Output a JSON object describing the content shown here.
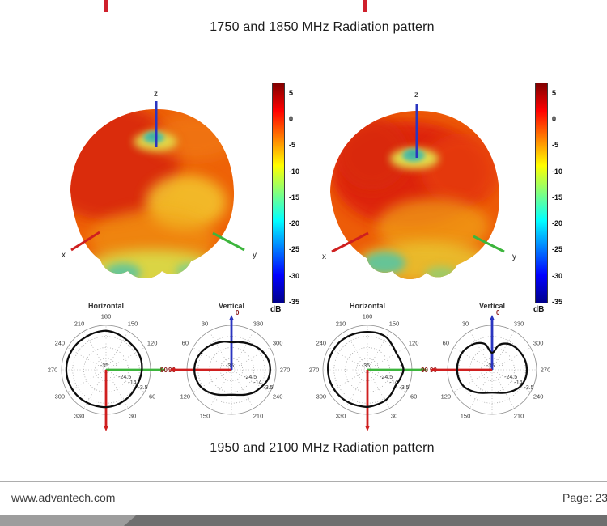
{
  "page": {
    "captions": {
      "top": "1750 and 1850 MHz Radiation pattern",
      "bottom": "1950 and 2100 MHz Radiation pattern"
    },
    "footer": {
      "website": "www.advantech.com",
      "page_label": "Page: 23"
    }
  },
  "colors": {
    "clipped_heading_red": "#cf202c",
    "axis_x_red": "#cf1f1f",
    "axis_y_green": "#3cb53c",
    "axis_z_blue": "#2a35c0",
    "polar_curve": "#0d0d0d",
    "accent_label_maroon": "#8b1a1a",
    "footer_bar_dark": "#6f6f6f",
    "footer_bar_light": "#9d9d9d"
  },
  "chart_data": [
    {
      "type": "surface3d",
      "position": "left",
      "description": "3D antenna gain radiation pattern (lobed orange/red surface)",
      "axes": [
        "x",
        "y",
        "z"
      ],
      "colorbar": {
        "unit": "dB",
        "ticks": [
          5,
          0,
          -5,
          -10,
          -15,
          -20,
          -25,
          -30,
          -35
        ],
        "range_db": [
          -35,
          7
        ]
      }
    },
    {
      "type": "surface3d",
      "position": "right",
      "description": "3D antenna gain radiation pattern (lobed orange/red surface)",
      "axes": [
        "x",
        "y",
        "z"
      ],
      "colorbar": {
        "unit": "dB",
        "ticks": [
          5,
          0,
          -5,
          -10,
          -15,
          -20,
          -25,
          -30,
          -35
        ],
        "range_db": [
          -35,
          7
        ]
      }
    },
    {
      "type": "polar",
      "title": "Horizontal",
      "orientation": "horizontal",
      "group": "left-pair",
      "angle_labels": [
        30,
        60,
        120,
        150,
        180,
        210,
        240,
        270,
        300,
        330
      ],
      "axis_labels": [
        {
          "axis": "green",
          "label": "90"
        },
        {
          "axis": "red",
          "label": ""
        }
      ],
      "ring_labels": [
        "-35",
        "-24.5",
        "-14",
        "-3.5"
      ],
      "ring_values_db": [
        -35,
        -24.5,
        -14,
        -3.5
      ],
      "outer_ring_db": 7,
      "angles_deg": [
        0,
        15,
        30,
        45,
        60,
        75,
        90,
        105,
        120,
        135,
        150,
        165,
        180,
        195,
        210,
        225,
        240,
        255,
        270,
        285,
        300,
        315,
        330,
        345
      ],
      "gain_db": [
        0.2,
        -0.4,
        -1.2,
        -1.8,
        -2.4,
        -2.0,
        -1.2,
        -0.6,
        -0.6,
        -1.0,
        -0.4,
        0.8,
        1.8,
        1.6,
        1.4,
        1.8,
        2.1,
        2.4,
        2.5,
        2.2,
        1.8,
        1.3,
        0.8,
        0.4
      ]
    },
    {
      "type": "polar",
      "title": "Vertical",
      "orientation": "vertical",
      "group": "left-pair",
      "angle_labels": [
        30,
        60,
        120,
        150,
        210,
        240,
        270,
        300,
        330
      ],
      "axis_labels": [
        {
          "axis": "blue",
          "label": "0"
        },
        {
          "axis": "red",
          "label": "90"
        }
      ],
      "ring_labels": [
        "-35",
        "-24.5",
        "-14",
        "-3.5"
      ],
      "ring_values_db": [
        -35,
        -24.5,
        -14,
        -3.5
      ],
      "outer_ring_db": 7,
      "angles_deg": [
        0,
        15,
        30,
        45,
        60,
        75,
        90,
        105,
        120,
        135,
        150,
        165,
        180,
        195,
        210,
        225,
        240,
        255,
        270,
        285,
        300,
        315,
        330,
        345
      ],
      "gain_db": [
        -9,
        -7.5,
        -6,
        -4,
        -2,
        -0.5,
        0,
        -0.5,
        -2,
        -5,
        -8,
        -10.5,
        -11.5,
        -10.5,
        -8,
        -5,
        -2.5,
        0.5,
        1.5,
        1,
        -1,
        -3.5,
        -6,
        -8
      ]
    },
    {
      "type": "polar",
      "title": "Horizontal",
      "orientation": "horizontal",
      "group": "right-pair",
      "angle_labels": [
        30,
        60,
        120,
        150,
        180,
        210,
        240,
        270,
        300,
        330
      ],
      "axis_labels": [
        {
          "axis": "green",
          "label": "90"
        },
        {
          "axis": "red",
          "label": ""
        }
      ],
      "ring_labels": [
        "-35",
        "-24.5",
        "-14",
        "-3.5"
      ],
      "ring_values_db": [
        -35,
        -24.5,
        -14,
        -3.5
      ],
      "outer_ring_db": 7,
      "angles_deg": [
        0,
        15,
        30,
        45,
        60,
        75,
        90,
        105,
        120,
        135,
        150,
        165,
        180,
        195,
        210,
        225,
        240,
        255,
        270,
        285,
        300,
        315,
        330,
        345
      ],
      "gain_db": [
        0,
        -1,
        -1.5,
        -3,
        -4.5,
        -3,
        -1,
        -2.5,
        -3.5,
        -2,
        0.5,
        1,
        0.8,
        1,
        1.5,
        2,
        2.2,
        2.5,
        2.3,
        2,
        1.5,
        1,
        0.5,
        0
      ]
    },
    {
      "type": "polar",
      "title": "Vertical",
      "orientation": "vertical",
      "group": "right-pair",
      "angle_labels": [
        30,
        60,
        120,
        150,
        210,
        240,
        270,
        300,
        330
      ],
      "axis_labels": [
        {
          "axis": "blue",
          "label": "0"
        },
        {
          "axis": "red",
          "label": "90"
        }
      ],
      "ring_labels": [
        "-35",
        "-24.5",
        "-14",
        "-3.5"
      ],
      "ring_values_db": [
        -35,
        -24.5,
        -14,
        -3.5
      ],
      "outer_ring_db": 7,
      "angles_deg": [
        0,
        15,
        30,
        45,
        60,
        75,
        90,
        105,
        120,
        135,
        150,
        165,
        180,
        195,
        210,
        225,
        240,
        255,
        270,
        285,
        300,
        315,
        330,
        345
      ],
      "gain_db": [
        -19,
        -10,
        -6,
        -4,
        -2.5,
        -2,
        -2,
        -2.5,
        -4,
        -7,
        -10,
        -12.5,
        -13.5,
        -12.5,
        -10,
        -7,
        -4,
        -2.5,
        -2.2,
        -2.5,
        -3.5,
        -4.5,
        -6.5,
        -11
      ]
    }
  ]
}
